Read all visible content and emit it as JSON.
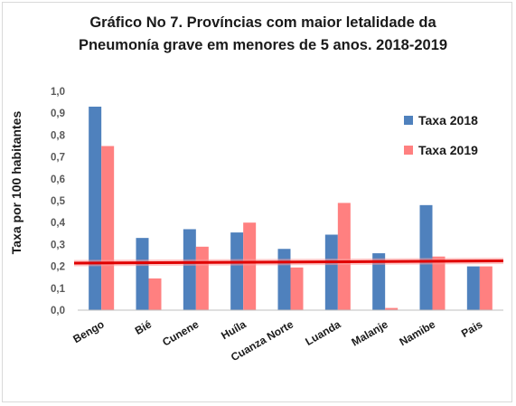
{
  "chart_data": {
    "type": "bar",
    "title_lines": [
      "Gráfico No 7. Províncias com maior letalidade da",
      "Pneumonía grave em menores de 5 anos. 2018-2019"
    ],
    "ylabel": "Taxa por 100 habitantes",
    "xlabel": "",
    "ylim": [
      0,
      1.0
    ],
    "yticks": [
      "0,0",
      "0,1",
      "0,2",
      "0,3",
      "0,4",
      "0,5",
      "0,6",
      "0,7",
      "0,8",
      "0,9",
      "1,0"
    ],
    "categories": [
      "Bengo",
      "Bié",
      "Cunene",
      "Huíla",
      "Cuanza Norte",
      "Luanda",
      "Malanje",
      "Namibe",
      "Pais"
    ],
    "series": [
      {
        "name": "Taxa 2018",
        "color": "#4f81bd",
        "values": [
          0.93,
          0.33,
          0.37,
          0.355,
          0.28,
          0.345,
          0.26,
          0.48,
          0.2
        ]
      },
      {
        "name": "Taxa 2019",
        "color": "#ff8080",
        "values": [
          0.75,
          0.145,
          0.29,
          0.4,
          0.195,
          0.49,
          0.01,
          0.245,
          0.2
        ]
      }
    ],
    "reference_line": {
      "color": "#e00000",
      "y_start": 0.215,
      "y_end": 0.225
    },
    "legend_position": "top-right",
    "grid": false
  }
}
